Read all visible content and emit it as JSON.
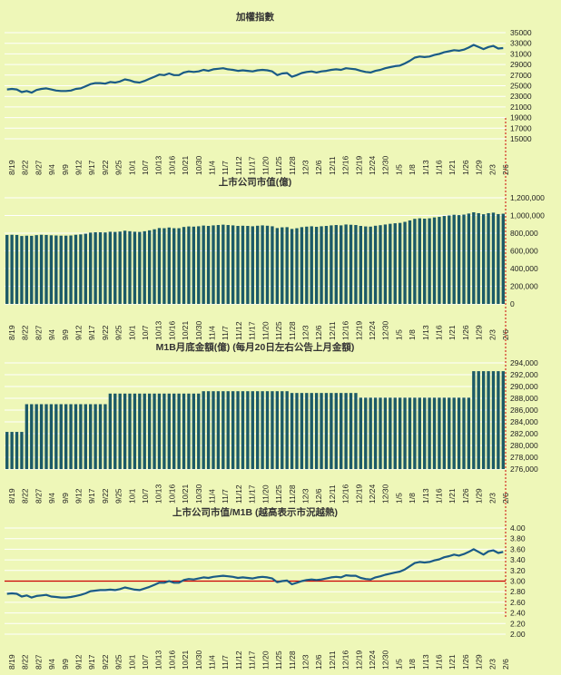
{
  "colors": {
    "background": "#eef7b8",
    "line": "#1a5b86",
    "bar": "#1c5a67",
    "grid": "#ffffff",
    "reference_line": "#cc0000"
  },
  "x_tick_labels": [
    "8/19",
    "8/22",
    "8/27",
    "9/4",
    "9/9",
    "9/12",
    "9/17",
    "9/22",
    "9/25",
    "10/1",
    "10/7",
    "10/13",
    "10/16",
    "10/21",
    "10/30",
    "11/4",
    "11/7",
    "11/12",
    "11/17",
    "11/20",
    "11/25",
    "11/28",
    "12/3",
    "12/6",
    "12/11",
    "12/16",
    "12/19",
    "12/24",
    "12/30",
    "1/5",
    "1/8",
    "1/13",
    "1/16",
    "1/21",
    "1/26",
    "1/29",
    "2/3",
    "2/6"
  ],
  "chart_data": [
    {
      "type": "line",
      "title": "加權指數",
      "y_ticks": [
        "35000",
        "33000",
        "31000",
        "29000",
        "27000",
        "25000",
        "23000",
        "21000",
        "19000",
        "17000",
        "15000"
      ],
      "ylim": [
        15000,
        35000
      ],
      "values": [
        24300,
        24400,
        24300,
        23800,
        24000,
        23700,
        24200,
        24400,
        24500,
        24300,
        24100,
        24000,
        24000,
        24100,
        24400,
        24500,
        24900,
        25300,
        25500,
        25500,
        25400,
        25700,
        25600,
        25800,
        26200,
        26000,
        25700,
        25600,
        25900,
        26300,
        26700,
        27100,
        27000,
        27300,
        27000,
        27000,
        27500,
        27700,
        27600,
        27700,
        28000,
        27800,
        28100,
        28200,
        28300,
        28100,
        28000,
        27800,
        27900,
        27800,
        27700,
        27900,
        28000,
        27900,
        27700,
        27000,
        27300,
        27400,
        26700,
        27000,
        27400,
        27600,
        27700,
        27500,
        27700,
        27800,
        28000,
        28100,
        28000,
        28300,
        28200,
        28100,
        27800,
        27600,
        27500,
        27800,
        28000,
        28300,
        28500,
        28700,
        28800,
        29200,
        29700,
        30300,
        30500,
        30400,
        30500,
        30800,
        31000,
        31300,
        31500,
        31700,
        31600,
        31800,
        32200,
        32700,
        32300,
        31900,
        32300,
        32500,
        32000,
        32100
      ]
    },
    {
      "type": "bar",
      "title": "上市公司市值(億)",
      "y_ticks": [
        "1,200,000",
        "1,000,000",
        "800,000",
        "600,000",
        "400,000",
        "200,000",
        "0"
      ],
      "ylim": [
        0,
        1200000
      ],
      "values": [
        780000,
        782000,
        780000,
        768000,
        772000,
        770000,
        778000,
        782000,
        780000,
        776000,
        774000,
        772000,
        772000,
        774000,
        782000,
        786000,
        794000,
        806000,
        810000,
        810000,
        808000,
        816000,
        814000,
        818000,
        828000,
        822000,
        816000,
        814000,
        822000,
        832000,
        844000,
        858000,
        856000,
        864000,
        856000,
        856000,
        870000,
        876000,
        874000,
        878000,
        886000,
        882000,
        888000,
        892000,
        896000,
        892000,
        888000,
        882000,
        884000,
        882000,
        878000,
        884000,
        888000,
        884000,
        878000,
        858000,
        866000,
        868000,
        848000,
        856000,
        868000,
        874000,
        878000,
        872000,
        878000,
        882000,
        888000,
        892000,
        888000,
        898000,
        895000,
        892000,
        882000,
        876000,
        874000,
        884000,
        890000,
        898000,
        906000,
        912000,
        916000,
        928000,
        944000,
        962000,
        968000,
        964000,
        968000,
        978000,
        984000,
        994000,
        1000000,
        1008000,
        1004000,
        1010000,
        1022000,
        1036000,
        1026000,
        1014000,
        1026000,
        1032000,
        1016000,
        1020000
      ]
    },
    {
      "type": "bar",
      "title": "M1B月底金額(億) (每月20日左右公告上月金額)",
      "y_ticks": [
        "294,000",
        "292,000",
        "290,000",
        "288,000",
        "286,000",
        "284,000",
        "282,000",
        "280,000",
        "278,000",
        "276,000"
      ],
      "ylim": [
        276000,
        294000
      ],
      "values": [
        282300,
        282300,
        282300,
        282300,
        287000,
        287000,
        287000,
        287000,
        287000,
        287000,
        287000,
        287000,
        287000,
        287000,
        287000,
        287000,
        287000,
        287000,
        287000,
        287000,
        287000,
        288800,
        288800,
        288800,
        288800,
        288800,
        288800,
        288800,
        288800,
        288800,
        288800,
        288800,
        288800,
        288800,
        288800,
        288800,
        288800,
        288800,
        288800,
        288800,
        289200,
        289200,
        289200,
        289200,
        289200,
        289200,
        289200,
        289200,
        289200,
        289200,
        289200,
        289200,
        289200,
        289200,
        289200,
        289200,
        289200,
        289200,
        288900,
        288900,
        288900,
        288900,
        288900,
        288900,
        288900,
        288900,
        288900,
        288900,
        288900,
        288900,
        288900,
        288900,
        288100,
        288100,
        288100,
        288100,
        288100,
        288100,
        288100,
        288100,
        288100,
        288100,
        288100,
        288100,
        288100,
        288100,
        288100,
        288100,
        288100,
        288100,
        288100,
        288100,
        288100,
        288100,
        288100,
        292600,
        292600,
        292600,
        292600,
        292600,
        292600,
        292600
      ]
    },
    {
      "type": "line",
      "title": "上市公司市值/M1B (越高表示市況越熱)",
      "y_ticks": [
        "4.00",
        "3.80",
        "3.60",
        "3.40",
        "3.20",
        "3.00",
        "2.80",
        "2.60",
        "2.40",
        "2.20",
        "2.00"
      ],
      "ylim": [
        2.0,
        4.0
      ],
      "reference_value": 3.0,
      "values": [
        2.76,
        2.77,
        2.76,
        2.71,
        2.73,
        2.69,
        2.72,
        2.73,
        2.74,
        2.71,
        2.7,
        2.69,
        2.69,
        2.7,
        2.72,
        2.74,
        2.77,
        2.81,
        2.82,
        2.83,
        2.83,
        2.84,
        2.83,
        2.85,
        2.88,
        2.86,
        2.84,
        2.83,
        2.86,
        2.89,
        2.93,
        2.97,
        2.97,
        3.0,
        2.97,
        2.97,
        3.02,
        3.04,
        3.03,
        3.05,
        3.07,
        3.06,
        3.08,
        3.09,
        3.1,
        3.09,
        3.08,
        3.06,
        3.07,
        3.06,
        3.05,
        3.07,
        3.08,
        3.07,
        3.05,
        2.98,
        3.0,
        3.01,
        2.94,
        2.97,
        3.0,
        3.02,
        3.03,
        3.02,
        3.03,
        3.05,
        3.07,
        3.08,
        3.07,
        3.11,
        3.1,
        3.1,
        3.06,
        3.04,
        3.03,
        3.07,
        3.09,
        3.12,
        3.14,
        3.16,
        3.18,
        3.22,
        3.28,
        3.34,
        3.36,
        3.35,
        3.36,
        3.39,
        3.41,
        3.45,
        3.47,
        3.5,
        3.48,
        3.51,
        3.55,
        3.6,
        3.55,
        3.5,
        3.56,
        3.58,
        3.53,
        3.55
      ]
    }
  ]
}
